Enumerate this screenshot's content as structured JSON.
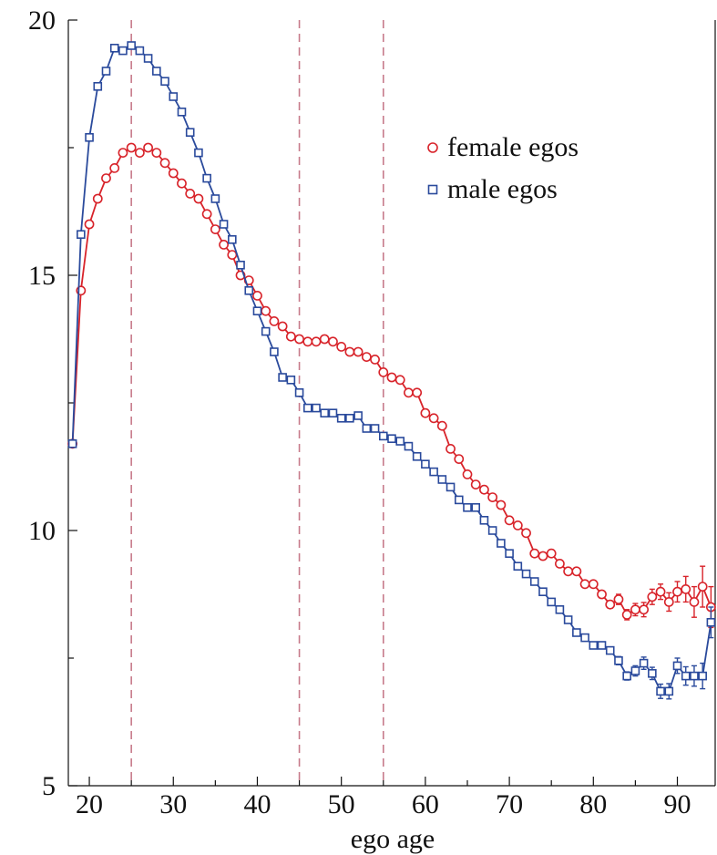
{
  "chart_data": {
    "type": "line",
    "xlabel": "ego age",
    "ylabel": "",
    "xlim": [
      17.5,
      94.5
    ],
    "ylim": [
      5,
      20
    ],
    "xticks": [
      20,
      30,
      40,
      50,
      60,
      70,
      80,
      90
    ],
    "yticks": [
      5,
      10,
      15,
      20
    ],
    "x_tick_labels": [
      "20",
      "30",
      "40",
      "50",
      "60",
      "70",
      "80",
      "90"
    ],
    "y_tick_labels": [
      "5",
      "10",
      "15",
      "20"
    ],
    "reference_lines_x": [
      25,
      45,
      55
    ],
    "legend_position": "upper-right",
    "x": [
      18,
      19,
      20,
      21,
      22,
      23,
      24,
      25,
      26,
      27,
      28,
      29,
      30,
      31,
      32,
      33,
      34,
      35,
      36,
      37,
      38,
      39,
      40,
      41,
      42,
      43,
      44,
      45,
      46,
      47,
      48,
      49,
      50,
      51,
      52,
      53,
      54,
      55,
      56,
      57,
      58,
      59,
      60,
      61,
      62,
      63,
      64,
      65,
      66,
      67,
      68,
      69,
      70,
      71,
      72,
      73,
      74,
      75,
      76,
      77,
      78,
      79,
      80,
      81,
      82,
      83,
      84,
      85,
      86,
      87,
      88,
      89,
      90,
      91,
      92,
      93,
      94
    ],
    "series": [
      {
        "name": "female egos",
        "marker": "circle",
        "color": "#d8232a",
        "values": [
          11.7,
          14.7,
          16.0,
          16.5,
          16.9,
          17.1,
          17.4,
          17.5,
          17.4,
          17.5,
          17.4,
          17.2,
          17.0,
          16.8,
          16.6,
          16.5,
          16.2,
          15.9,
          15.6,
          15.4,
          15.0,
          14.9,
          14.6,
          14.3,
          14.1,
          14.0,
          13.8,
          13.75,
          13.7,
          13.7,
          13.75,
          13.7,
          13.6,
          13.5,
          13.5,
          13.4,
          13.35,
          13.1,
          13.0,
          12.95,
          12.7,
          12.7,
          12.3,
          12.2,
          12.05,
          11.6,
          11.4,
          11.1,
          10.9,
          10.8,
          10.65,
          10.5,
          10.2,
          10.1,
          9.95,
          9.55,
          9.5,
          9.55,
          9.35,
          9.2,
          9.2,
          8.95,
          8.95,
          8.75,
          8.55,
          8.65,
          8.35,
          8.45,
          8.45,
          8.7,
          8.8,
          8.6,
          8.8,
          8.85,
          8.6,
          8.9,
          8.5
        ],
        "error_bars": [
          0,
          0,
          0,
          0,
          0,
          0,
          0,
          0,
          0,
          0,
          0,
          0,
          0,
          0,
          0,
          0,
          0,
          0,
          0,
          0,
          0,
          0,
          0,
          0,
          0,
          0,
          0,
          0,
          0,
          0,
          0,
          0,
          0,
          0,
          0,
          0,
          0,
          0,
          0,
          0,
          0,
          0,
          0,
          0,
          0,
          0,
          0,
          0,
          0,
          0,
          0,
          0,
          0,
          0,
          0,
          0,
          0,
          0,
          0,
          0,
          0,
          0,
          0.05,
          0.05,
          0.07,
          0.1,
          0.1,
          0.12,
          0.14,
          0.15,
          0.15,
          0.18,
          0.2,
          0.25,
          0.3,
          0.4,
          0.4
        ]
      },
      {
        "name": "male egos",
        "marker": "square",
        "color": "#2a4a9c",
        "values": [
          11.7,
          15.8,
          17.7,
          18.7,
          19.0,
          19.45,
          19.4,
          19.5,
          19.4,
          19.25,
          19.0,
          18.8,
          18.5,
          18.2,
          17.8,
          17.4,
          16.9,
          16.5,
          16.0,
          15.7,
          15.2,
          14.7,
          14.3,
          13.9,
          13.5,
          13.0,
          12.95,
          12.7,
          12.4,
          12.4,
          12.3,
          12.3,
          12.2,
          12.2,
          12.25,
          12.0,
          12.0,
          11.85,
          11.8,
          11.75,
          11.65,
          11.45,
          11.3,
          11.15,
          11.0,
          10.85,
          10.6,
          10.45,
          10.45,
          10.2,
          10.0,
          9.75,
          9.55,
          9.3,
          9.15,
          9.0,
          8.8,
          8.6,
          8.45,
          8.25,
          8.0,
          7.9,
          7.75,
          7.75,
          7.65,
          7.45,
          7.15,
          7.25,
          7.4,
          7.2,
          6.85,
          6.85,
          7.35,
          7.15,
          7.15,
          7.15,
          8.2
        ],
        "error_bars": [
          0,
          0,
          0,
          0,
          0,
          0,
          0,
          0,
          0,
          0,
          0,
          0,
          0,
          0,
          0,
          0,
          0,
          0,
          0,
          0,
          0,
          0,
          0,
          0,
          0,
          0,
          0,
          0,
          0,
          0,
          0,
          0,
          0,
          0,
          0,
          0,
          0,
          0,
          0,
          0,
          0,
          0,
          0,
          0,
          0,
          0,
          0,
          0,
          0,
          0,
          0,
          0,
          0,
          0,
          0,
          0,
          0,
          0,
          0,
          0,
          0,
          0,
          0.05,
          0.05,
          0.06,
          0.08,
          0.08,
          0.1,
          0.12,
          0.12,
          0.14,
          0.15,
          0.15,
          0.18,
          0.2,
          0.25,
          0.3
        ]
      }
    ]
  }
}
